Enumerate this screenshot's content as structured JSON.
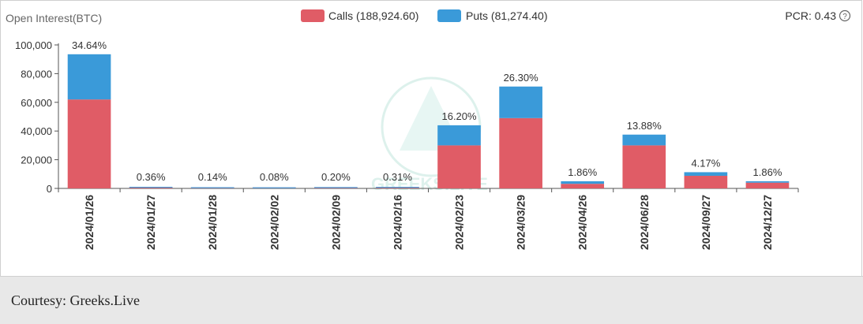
{
  "caption": "Courtesy: Greeks.Live",
  "pcr_label": "PCR: 0.43",
  "watermark": "GREEKS.LIVE",
  "chart_data": {
    "type": "bar",
    "stacked": true,
    "title": "Open Interest(BTC)",
    "categories": [
      "2024/01/26",
      "2024/01/27",
      "2024/01/28",
      "2024/02/02",
      "2024/02/09",
      "2024/02/16",
      "2024/02/23",
      "2024/03/29",
      "2024/04/26",
      "2024/06/28",
      "2024/09/27",
      "2024/12/27"
    ],
    "series": [
      {
        "name": "Calls (188,924.60)",
        "color": "#e05c66",
        "values": [
          62000,
          450,
          180,
          100,
          280,
          400,
          30000,
          49000,
          3200,
          30000,
          8800,
          4000
        ]
      },
      {
        "name": "Puts (81,274.40)",
        "color": "#3a9ad9",
        "values": [
          31500,
          530,
          200,
          120,
          260,
          440,
          14000,
          22000,
          1800,
          7500,
          2500,
          1000
        ]
      }
    ],
    "percent_labels": [
      "34.64%",
      "0.36%",
      "0.14%",
      "0.08%",
      "0.20%",
      "0.31%",
      "16.20%",
      "26.30%",
      "1.86%",
      "13.88%",
      "4.17%",
      "1.86%"
    ],
    "y_ticks": [
      "0",
      "20,000",
      "40,000",
      "60,000",
      "80,000",
      "100,000"
    ],
    "ylim": [
      0,
      100000
    ],
    "legend_position": "top-center",
    "grid": false
  }
}
